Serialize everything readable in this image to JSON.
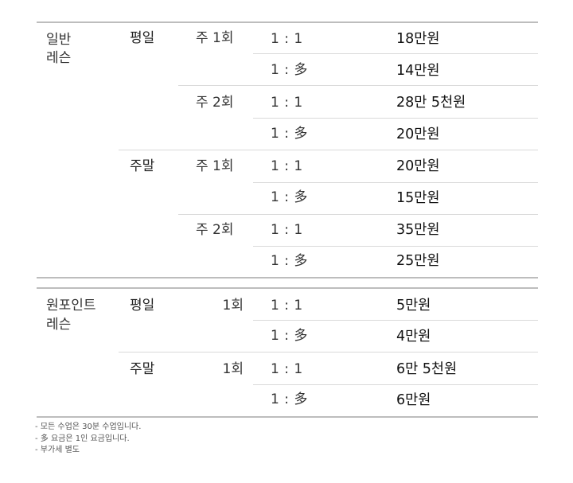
{
  "groups": [
    {
      "category": [
        "일반",
        "레슨"
      ],
      "days": [
        {
          "label": "평일",
          "freqs": [
            {
              "label": "주 1회",
              "rows": [
                {
                  "ratio": "1 : 1",
                  "price": "18만원"
                },
                {
                  "ratio": "1 : 多",
                  "price": "14만원"
                }
              ]
            },
            {
              "label": "주 2회",
              "rows": [
                {
                  "ratio": "1 : 1",
                  "price": "28만 5천원"
                },
                {
                  "ratio": "1 : 多",
                  "price": "20만원"
                }
              ]
            }
          ]
        },
        {
          "label": "주말",
          "freqs": [
            {
              "label": "주 1회",
              "rows": [
                {
                  "ratio": "1 : 1",
                  "price": "20만원"
                },
                {
                  "ratio": "1 : 多",
                  "price": "15만원"
                }
              ]
            },
            {
              "label": "주 2회",
              "rows": [
                {
                  "ratio": "1 : 1",
                  "price": "35만원"
                },
                {
                  "ratio": "1 : 多",
                  "price": "25만원"
                }
              ]
            }
          ]
        }
      ]
    },
    {
      "category": [
        "원포인트",
        "레슨"
      ],
      "days": [
        {
          "label": "평일",
          "freqs": [
            {
              "label": "1회",
              "rows": [
                {
                  "ratio": "1 : 1",
                  "price": "5만원"
                },
                {
                  "ratio": "1 : 多",
                  "price": "4만원"
                }
              ]
            }
          ]
        },
        {
          "label": "주말",
          "freqs": [
            {
              "label": "1회",
              "rows": [
                {
                  "ratio": "1 : 1",
                  "price": "6만 5천원"
                },
                {
                  "ratio": "1 : 多",
                  "price": "6만원"
                }
              ]
            }
          ]
        }
      ]
    }
  ],
  "notes": [
    "- 모든 수업은 30분 수업입니다.",
    "- 多 요금은 1인 요금입니다.",
    "- 부가세 별도"
  ]
}
